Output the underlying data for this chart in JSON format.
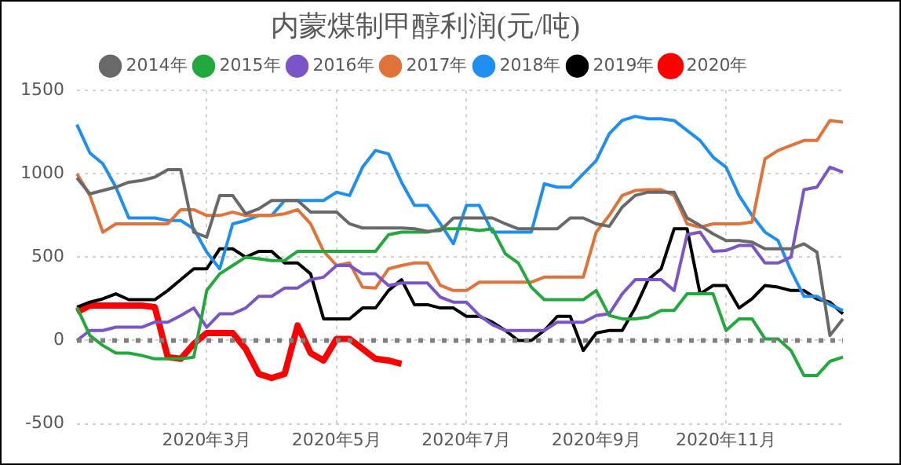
{
  "chart_data": {
    "type": "line",
    "title": "内蒙煤制甲醇利润(元/吨)",
    "categories": [
      null,
      null,
      null,
      null,
      null,
      null,
      null,
      null,
      null,
      null,
      "2020年3月",
      null,
      null,
      null,
      null,
      null,
      null,
      null,
      null,
      null,
      "2020年5月",
      null,
      null,
      null,
      null,
      null,
      null,
      null,
      null,
      null,
      "2020年7月",
      null,
      null,
      null,
      null,
      null,
      null,
      null,
      null,
      null,
      "2020年9月",
      null,
      null,
      null,
      null,
      null,
      null,
      null,
      null,
      null,
      "2020年11月",
      null,
      null,
      null,
      null,
      null,
      null,
      null,
      null,
      null
    ],
    "series": [
      {
        "name": "2014年",
        "color": "#696969",
        "values": [
          975,
          880,
          900,
          920,
          950,
          960,
          980,
          1025,
          1025,
          650,
          620,
          870,
          870,
          760,
          790,
          840,
          840,
          840,
          770,
          770,
          770,
          700,
          675,
          675,
          675,
          675,
          670,
          655,
          660,
          735,
          735,
          735,
          735,
          700,
          670,
          670,
          670,
          670,
          735,
          735,
          700,
          685,
          800,
          870,
          890,
          890,
          890,
          735,
          690,
          640,
          600,
          600,
          590,
          550,
          550,
          550,
          580,
          530,
          30,
          130
        ]
      },
      {
        "name": "2015年",
        "color": "#22a83c",
        "values": [
          200,
          30,
          -30,
          -75,
          -75,
          -90,
          -110,
          -110,
          -110,
          -100,
          300,
          400,
          450,
          500,
          490,
          480,
          480,
          535,
          535,
          535,
          535,
          535,
          535,
          535,
          635,
          650,
          650,
          650,
          670,
          670,
          670,
          660,
          670,
          520,
          465,
          320,
          245,
          245,
          245,
          245,
          300,
          150,
          130,
          130,
          140,
          180,
          180,
          280,
          280,
          280,
          60,
          130,
          130,
          10,
          10,
          -60,
          -210,
          -210,
          -125,
          -100
        ]
      },
      {
        "name": "2016年",
        "color": "#7b55c8",
        "values": [
          0,
          60,
          60,
          80,
          80,
          80,
          110,
          110,
          150,
          195,
          80,
          160,
          160,
          195,
          265,
          265,
          315,
          315,
          365,
          380,
          450,
          450,
          400,
          400,
          330,
          345,
          345,
          345,
          260,
          230,
          230,
          150,
          95,
          60,
          60,
          60,
          60,
          110,
          110,
          110,
          150,
          160,
          280,
          365,
          365,
          365,
          300,
          635,
          650,
          535,
          540,
          570,
          570,
          465,
          465,
          500,
          905,
          920,
          1040,
          1010
        ]
      },
      {
        "name": "2017年",
        "color": "#e0723a",
        "values": [
          1000,
          870,
          650,
          700,
          700,
          700,
          700,
          700,
          785,
          785,
          750,
          750,
          770,
          750,
          750,
          750,
          760,
          785,
          700,
          535,
          450,
          465,
          320,
          315,
          430,
          450,
          465,
          465,
          330,
          300,
          300,
          350,
          350,
          350,
          350,
          350,
          380,
          380,
          380,
          380,
          650,
          750,
          870,
          900,
          905,
          905,
          870,
          700,
          680,
          700,
          700,
          700,
          710,
          1090,
          1140,
          1170,
          1200,
          1200,
          1320,
          1310
        ]
      },
      {
        "name": "2018年",
        "color": "#1e8ff0",
        "values": [
          1295,
          1125,
          1060,
          920,
          735,
          735,
          735,
          720,
          720,
          670,
          530,
          430,
          700,
          720,
          750,
          750,
          840,
          840,
          840,
          840,
          890,
          870,
          1040,
          1140,
          1120,
          950,
          810,
          810,
          700,
          580,
          810,
          810,
          650,
          650,
          650,
          650,
          940,
          920,
          920,
          1000,
          1080,
          1240,
          1320,
          1345,
          1330,
          1330,
          1320,
          1260,
          1200,
          1100,
          1040,
          870,
          750,
          650,
          600,
          420,
          265,
          265,
          215,
          180
        ]
      },
      {
        "name": "2019年",
        "color": "#000000",
        "values": [
          200,
          230,
          250,
          280,
          245,
          245,
          245,
          300,
          365,
          430,
          430,
          550,
          550,
          500,
          535,
          535,
          465,
          465,
          400,
          130,
          130,
          130,
          195,
          195,
          300,
          365,
          215,
          215,
          195,
          195,
          145,
          145,
          110,
          60,
          0,
          0,
          60,
          145,
          145,
          -60,
          45,
          60,
          60,
          195,
          365,
          430,
          670,
          670,
          280,
          330,
          330,
          195,
          250,
          330,
          320,
          300,
          300,
          250,
          230,
          160
        ]
      },
      {
        "name": "2020年",
        "color": "#ff0000",
        "values": [
          170,
          210,
          210,
          210,
          210,
          210,
          200,
          -100,
          -110,
          -20,
          45,
          45,
          45,
          -50,
          -200,
          -225,
          -200,
          90,
          -75,
          -120,
          10,
          10,
          -50,
          -110,
          -120,
          -140,
          null,
          null,
          null,
          null,
          null,
          null,
          null,
          null,
          null,
          null,
          null,
          null,
          null,
          null,
          null,
          null,
          null,
          null,
          null,
          null,
          null,
          null,
          null,
          null,
          null,
          null,
          null,
          null,
          null,
          null,
          null,
          null,
          null,
          null
        ]
      }
    ],
    "ylim": [
      -500,
      1500
    ],
    "yticks": [
      -500,
      0,
      500,
      1000,
      1500
    ],
    "grid": true,
    "legend": "top",
    "marker": "none",
    "line_style": "solid",
    "ref_lines": [
      {
        "axis": "y",
        "value": 0,
        "color": "#7f7f7f",
        "line_style": "dotted"
      }
    ]
  }
}
